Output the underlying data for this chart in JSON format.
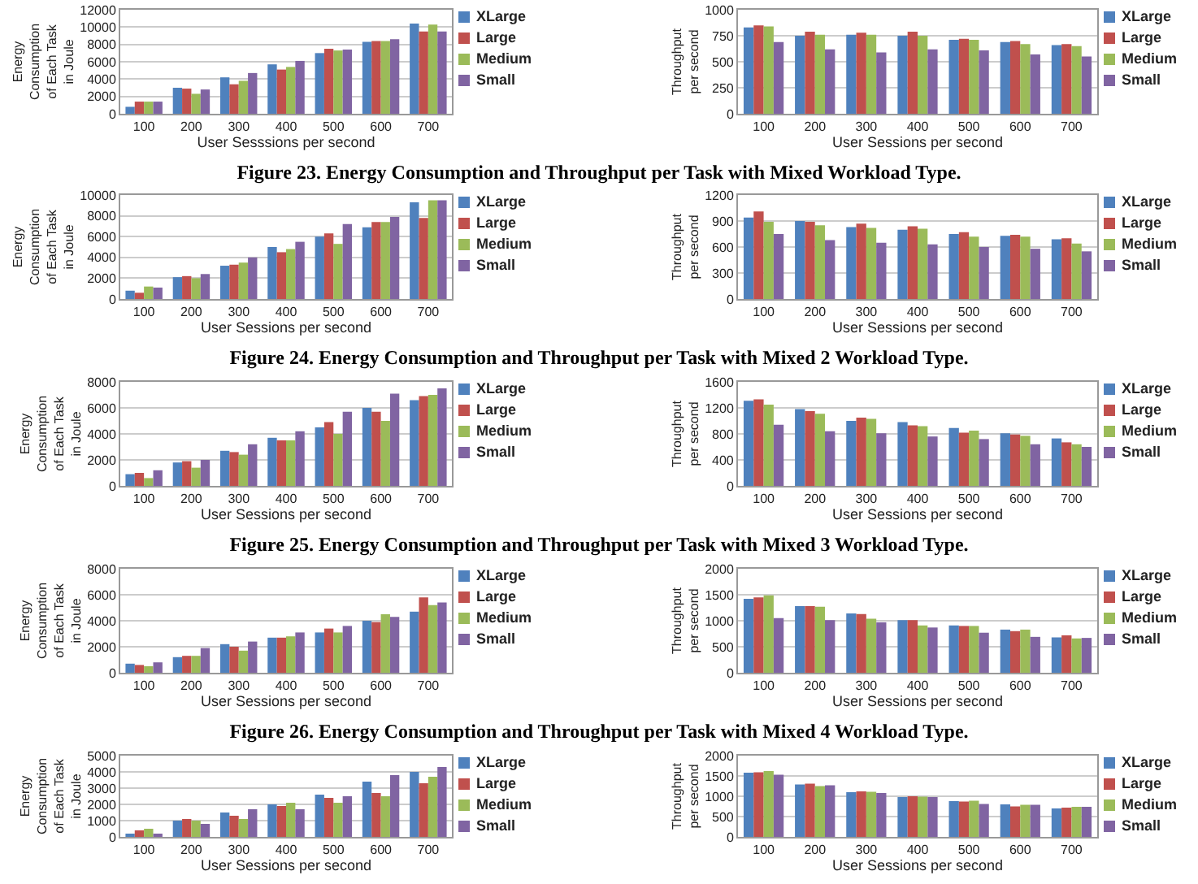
{
  "chart_data": [
    {
      "type": "bar",
      "xlabel": "User Sesssions per second",
      "ylabel": "Energy Consumption of Each Task in Joule",
      "categories": [
        "100",
        "200",
        "300",
        "400",
        "500",
        "600",
        "700"
      ],
      "ylim": [
        0,
        12000
      ],
      "yticks": [
        0,
        2000,
        4000,
        6000,
        8000,
        10000,
        12000
      ],
      "grid": "y",
      "legend": "top right",
      "annotations": [
        "Figure 23. Energy Consumption and Throughput per Task with Mixed Workload Type."
      ],
      "series": [
        {
          "name": "XLarge",
          "color": "#4f81bd",
          "values": [
            800,
            3000,
            4200,
            5700,
            7000,
            8300,
            10400
          ]
        },
        {
          "name": "Large",
          "color": "#c0504d",
          "values": [
            1400,
            2900,
            3400,
            5100,
            7500,
            8400,
            9500
          ]
        },
        {
          "name": "Medium",
          "color": "#9bbb59",
          "values": [
            1400,
            2300,
            3800,
            5400,
            7300,
            8400,
            10300
          ]
        },
        {
          "name": "Small",
          "color": "#8064a2",
          "values": [
            1400,
            2800,
            4700,
            6100,
            7400,
            8600,
            9500
          ]
        }
      ]
    },
    {
      "type": "bar",
      "xlabel": "User Sessions per second",
      "ylabel": "Throughput per second",
      "categories": [
        "100",
        "200",
        "300",
        "400",
        "500",
        "600",
        "700"
      ],
      "ylim": [
        0,
        1000
      ],
      "yticks": [
        0,
        250,
        500,
        750,
        1000
      ],
      "grid": "y",
      "legend": "top right",
      "series": [
        {
          "name": "XLarge",
          "color": "#4f81bd",
          "values": [
            830,
            750,
            760,
            750,
            710,
            690,
            660
          ]
        },
        {
          "name": "Large",
          "color": "#c0504d",
          "values": [
            850,
            790,
            780,
            790,
            720,
            700,
            670
          ]
        },
        {
          "name": "Medium",
          "color": "#9bbb59",
          "values": [
            840,
            760,
            760,
            750,
            710,
            670,
            650
          ]
        },
        {
          "name": "Small",
          "color": "#8064a2",
          "values": [
            690,
            620,
            590,
            620,
            610,
            570,
            550
          ]
        }
      ]
    },
    {
      "type": "bar",
      "xlabel": "User Sessions per second",
      "ylabel": "Energy Consumption of Each Task in Joule",
      "categories": [
        "100",
        "200",
        "300",
        "400",
        "500",
        "600",
        "700"
      ],
      "ylim": [
        0,
        10000
      ],
      "yticks": [
        0,
        2000,
        4000,
        6000,
        8000,
        10000
      ],
      "grid": "y",
      "legend": "top right",
      "annotations": [
        "Figure 24. Energy Consumption and Throughput per Task with Mixed 2 Workload Type."
      ],
      "series": [
        {
          "name": "XLarge",
          "color": "#4f81bd",
          "values": [
            800,
            2100,
            3200,
            5000,
            6000,
            6900,
            9300
          ]
        },
        {
          "name": "Large",
          "color": "#c0504d",
          "values": [
            600,
            2200,
            3300,
            4500,
            6300,
            7400,
            7800
          ]
        },
        {
          "name": "Medium",
          "color": "#9bbb59",
          "values": [
            1200,
            2000,
            3500,
            4800,
            5300,
            7400,
            9500
          ]
        },
        {
          "name": "Small",
          "color": "#8064a2",
          "values": [
            1100,
            2400,
            4000,
            5500,
            7200,
            7900,
            9500
          ]
        }
      ]
    },
    {
      "type": "bar",
      "xlabel": "User Sessions per second",
      "ylabel": "Throughput per second",
      "categories": [
        "100",
        "200",
        "300",
        "400",
        "500",
        "600",
        "700"
      ],
      "ylim": [
        0,
        1200
      ],
      "yticks": [
        0,
        300,
        600,
        900,
        1200
      ],
      "grid": "y",
      "legend": "top right",
      "series": [
        {
          "name": "XLarge",
          "color": "#4f81bd",
          "values": [
            940,
            900,
            830,
            800,
            750,
            730,
            690
          ]
        },
        {
          "name": "Large",
          "color": "#c0504d",
          "values": [
            1010,
            890,
            870,
            840,
            770,
            740,
            700
          ]
        },
        {
          "name": "Medium",
          "color": "#9bbb59",
          "values": [
            890,
            850,
            820,
            810,
            720,
            720,
            640
          ]
        },
        {
          "name": "Small",
          "color": "#8064a2",
          "values": [
            750,
            680,
            650,
            630,
            600,
            580,
            550
          ]
        }
      ]
    },
    {
      "type": "bar",
      "xlabel": "User Sessions per second",
      "ylabel": "Energy Consumption of Each Task in Joule",
      "categories": [
        "100",
        "200",
        "300",
        "400",
        "500",
        "600",
        "700"
      ],
      "ylim": [
        0,
        8000
      ],
      "yticks": [
        0,
        2000,
        4000,
        6000,
        8000
      ],
      "grid": "y",
      "legend": "top right",
      "annotations": [
        "Figure 25. Energy Consumption and Throughput per Task with Mixed 3 Workload Type."
      ],
      "series": [
        {
          "name": "XLarge",
          "color": "#4f81bd",
          "values": [
            900,
            1800,
            2700,
            3700,
            4500,
            6000,
            6600
          ]
        },
        {
          "name": "Large",
          "color": "#c0504d",
          "values": [
            1000,
            1900,
            2600,
            3500,
            4900,
            5700,
            6900
          ]
        },
        {
          "name": "Medium",
          "color": "#9bbb59",
          "values": [
            600,
            1400,
            2400,
            3500,
            4000,
            5000,
            7000
          ]
        },
        {
          "name": "Small",
          "color": "#8064a2",
          "values": [
            1200,
            2000,
            3200,
            4200,
            5700,
            7100,
            7500
          ]
        }
      ]
    },
    {
      "type": "bar",
      "xlabel": "User Sessions per second",
      "ylabel": "Throughput per second",
      "categories": [
        "100",
        "200",
        "300",
        "400",
        "500",
        "600",
        "700"
      ],
      "ylim": [
        0,
        1600
      ],
      "yticks": [
        0,
        400,
        800,
        1200,
        1600
      ],
      "grid": "y",
      "legend": "top right",
      "series": [
        {
          "name": "XLarge",
          "color": "#4f81bd",
          "values": [
            1310,
            1180,
            1000,
            980,
            890,
            810,
            730
          ]
        },
        {
          "name": "Large",
          "color": "#c0504d",
          "values": [
            1330,
            1150,
            1050,
            930,
            820,
            790,
            670
          ]
        },
        {
          "name": "Medium",
          "color": "#9bbb59",
          "values": [
            1250,
            1110,
            1030,
            920,
            850,
            770,
            640
          ]
        },
        {
          "name": "Small",
          "color": "#8064a2",
          "values": [
            940,
            840,
            810,
            760,
            720,
            640,
            600
          ]
        }
      ]
    },
    {
      "type": "bar",
      "xlabel": "User Sessions per second",
      "ylabel": "Energy Consumption of Each Task in Joule",
      "categories": [
        "100",
        "200",
        "300",
        "400",
        "500",
        "600",
        "700"
      ],
      "ylim": [
        0,
        8000
      ],
      "yticks": [
        0,
        2000,
        4000,
        6000,
        8000
      ],
      "grid": "y",
      "legend": "top right",
      "annotations": [
        "Figure 26. Energy Consumption and Throughput per Task with Mixed 4 Workload Type."
      ],
      "series": [
        {
          "name": "XLarge",
          "color": "#4f81bd",
          "values": [
            700,
            1200,
            2200,
            2700,
            3100,
            4000,
            4700
          ]
        },
        {
          "name": "Large",
          "color": "#c0504d",
          "values": [
            600,
            1300,
            2000,
            2700,
            3400,
            3900,
            5800
          ]
        },
        {
          "name": "Medium",
          "color": "#9bbb59",
          "values": [
            500,
            1300,
            1700,
            2800,
            3100,
            4500,
            5200
          ]
        },
        {
          "name": "Small",
          "color": "#8064a2",
          "values": [
            800,
            1900,
            2400,
            3100,
            3600,
            4300,
            5400
          ]
        }
      ]
    },
    {
      "type": "bar",
      "xlabel": "User Sessions per second",
      "ylabel": "Throughput per second",
      "categories": [
        "100",
        "200",
        "300",
        "400",
        "500",
        "600",
        "700"
      ],
      "ylim": [
        0,
        2000
      ],
      "yticks": [
        0,
        500,
        1000,
        1500,
        2000
      ],
      "grid": "y",
      "legend": "top right",
      "series": [
        {
          "name": "XLarge",
          "color": "#4f81bd",
          "values": [
            1420,
            1280,
            1140,
            1010,
            910,
            830,
            680
          ]
        },
        {
          "name": "Large",
          "color": "#c0504d",
          "values": [
            1450,
            1280,
            1130,
            1010,
            900,
            800,
            720
          ]
        },
        {
          "name": "Medium",
          "color": "#9bbb59",
          "values": [
            1490,
            1270,
            1040,
            910,
            900,
            830,
            660
          ]
        },
        {
          "name": "Small",
          "color": "#8064a2",
          "values": [
            1050,
            1010,
            970,
            870,
            770,
            690,
            670
          ]
        }
      ]
    },
    {
      "type": "bar",
      "xlabel": "User Sessions per second",
      "ylabel": "Energy Consumption of Each Task in Joule",
      "categories": [
        "100",
        "200",
        "300",
        "400",
        "500",
        "600",
        "700"
      ],
      "ylim": [
        0,
        5000
      ],
      "yticks": [
        0,
        1000,
        2000,
        3000,
        4000,
        5000
      ],
      "grid": "y",
      "legend": "top right",
      "series": [
        {
          "name": "XLarge",
          "color": "#4f81bd",
          "values": [
            200,
            1000,
            1500,
            2000,
            2600,
            3400,
            4000
          ]
        },
        {
          "name": "Large",
          "color": "#c0504d",
          "values": [
            400,
            1100,
            1300,
            1900,
            2400,
            2700,
            3300
          ]
        },
        {
          "name": "Medium",
          "color": "#9bbb59",
          "values": [
            500,
            1000,
            1100,
            2100,
            2100,
            2500,
            3700
          ]
        },
        {
          "name": "Small",
          "color": "#8064a2",
          "values": [
            200,
            800,
            1700,
            1700,
            2500,
            3800,
            4300
          ]
        }
      ]
    },
    {
      "type": "bar",
      "xlabel": "User Sessions per second",
      "ylabel": "Throughput per second",
      "categories": [
        "100",
        "200",
        "300",
        "400",
        "500",
        "600",
        "700"
      ],
      "ylim": [
        0,
        2000
      ],
      "yticks": [
        0,
        500,
        1000,
        1500,
        2000
      ],
      "grid": "y",
      "legend": "top right",
      "series": [
        {
          "name": "XLarge",
          "color": "#4f81bd",
          "values": [
            1580,
            1290,
            1100,
            980,
            880,
            800,
            700
          ]
        },
        {
          "name": "Large",
          "color": "#c0504d",
          "values": [
            1590,
            1310,
            1120,
            1000,
            870,
            750,
            720
          ]
        },
        {
          "name": "Medium",
          "color": "#9bbb59",
          "values": [
            1620,
            1250,
            1110,
            990,
            890,
            790,
            740
          ]
        },
        {
          "name": "Small",
          "color": "#8064a2",
          "values": [
            1530,
            1270,
            1080,
            980,
            810,
            790,
            740
          ]
        }
      ]
    }
  ]
}
